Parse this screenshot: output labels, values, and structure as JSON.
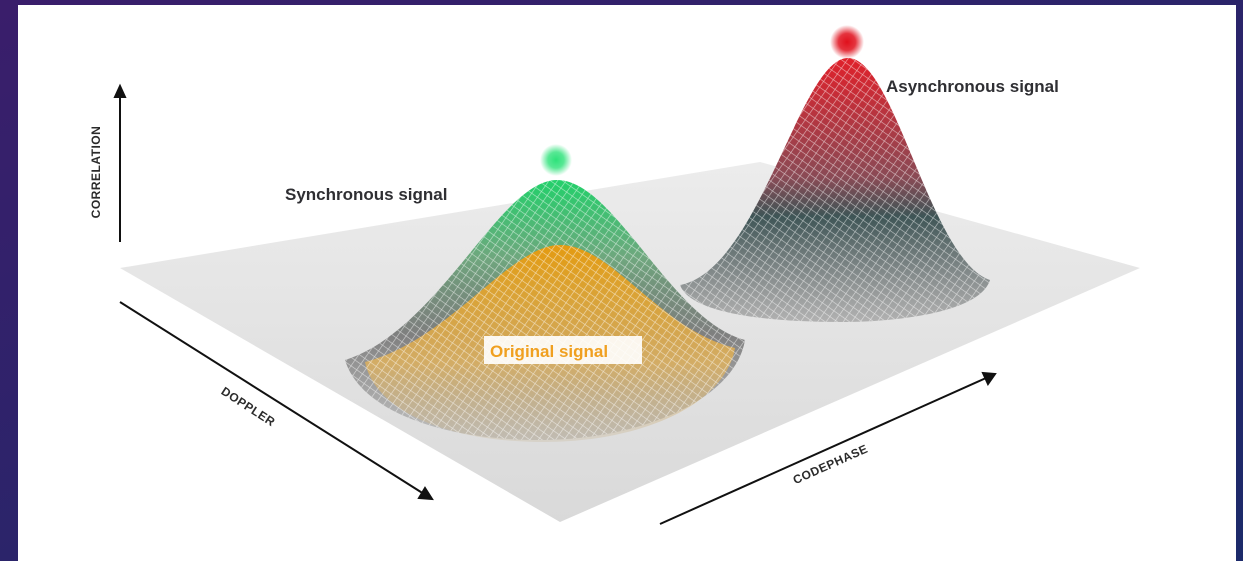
{
  "axes": {
    "vertical": "CORRELATION",
    "left": "DOPPLER",
    "right": "CODEPHASE"
  },
  "signals": {
    "synchronous": "Synchronous signal",
    "asynchronous": "Asynchronous signal",
    "original": "Original signal"
  }
}
